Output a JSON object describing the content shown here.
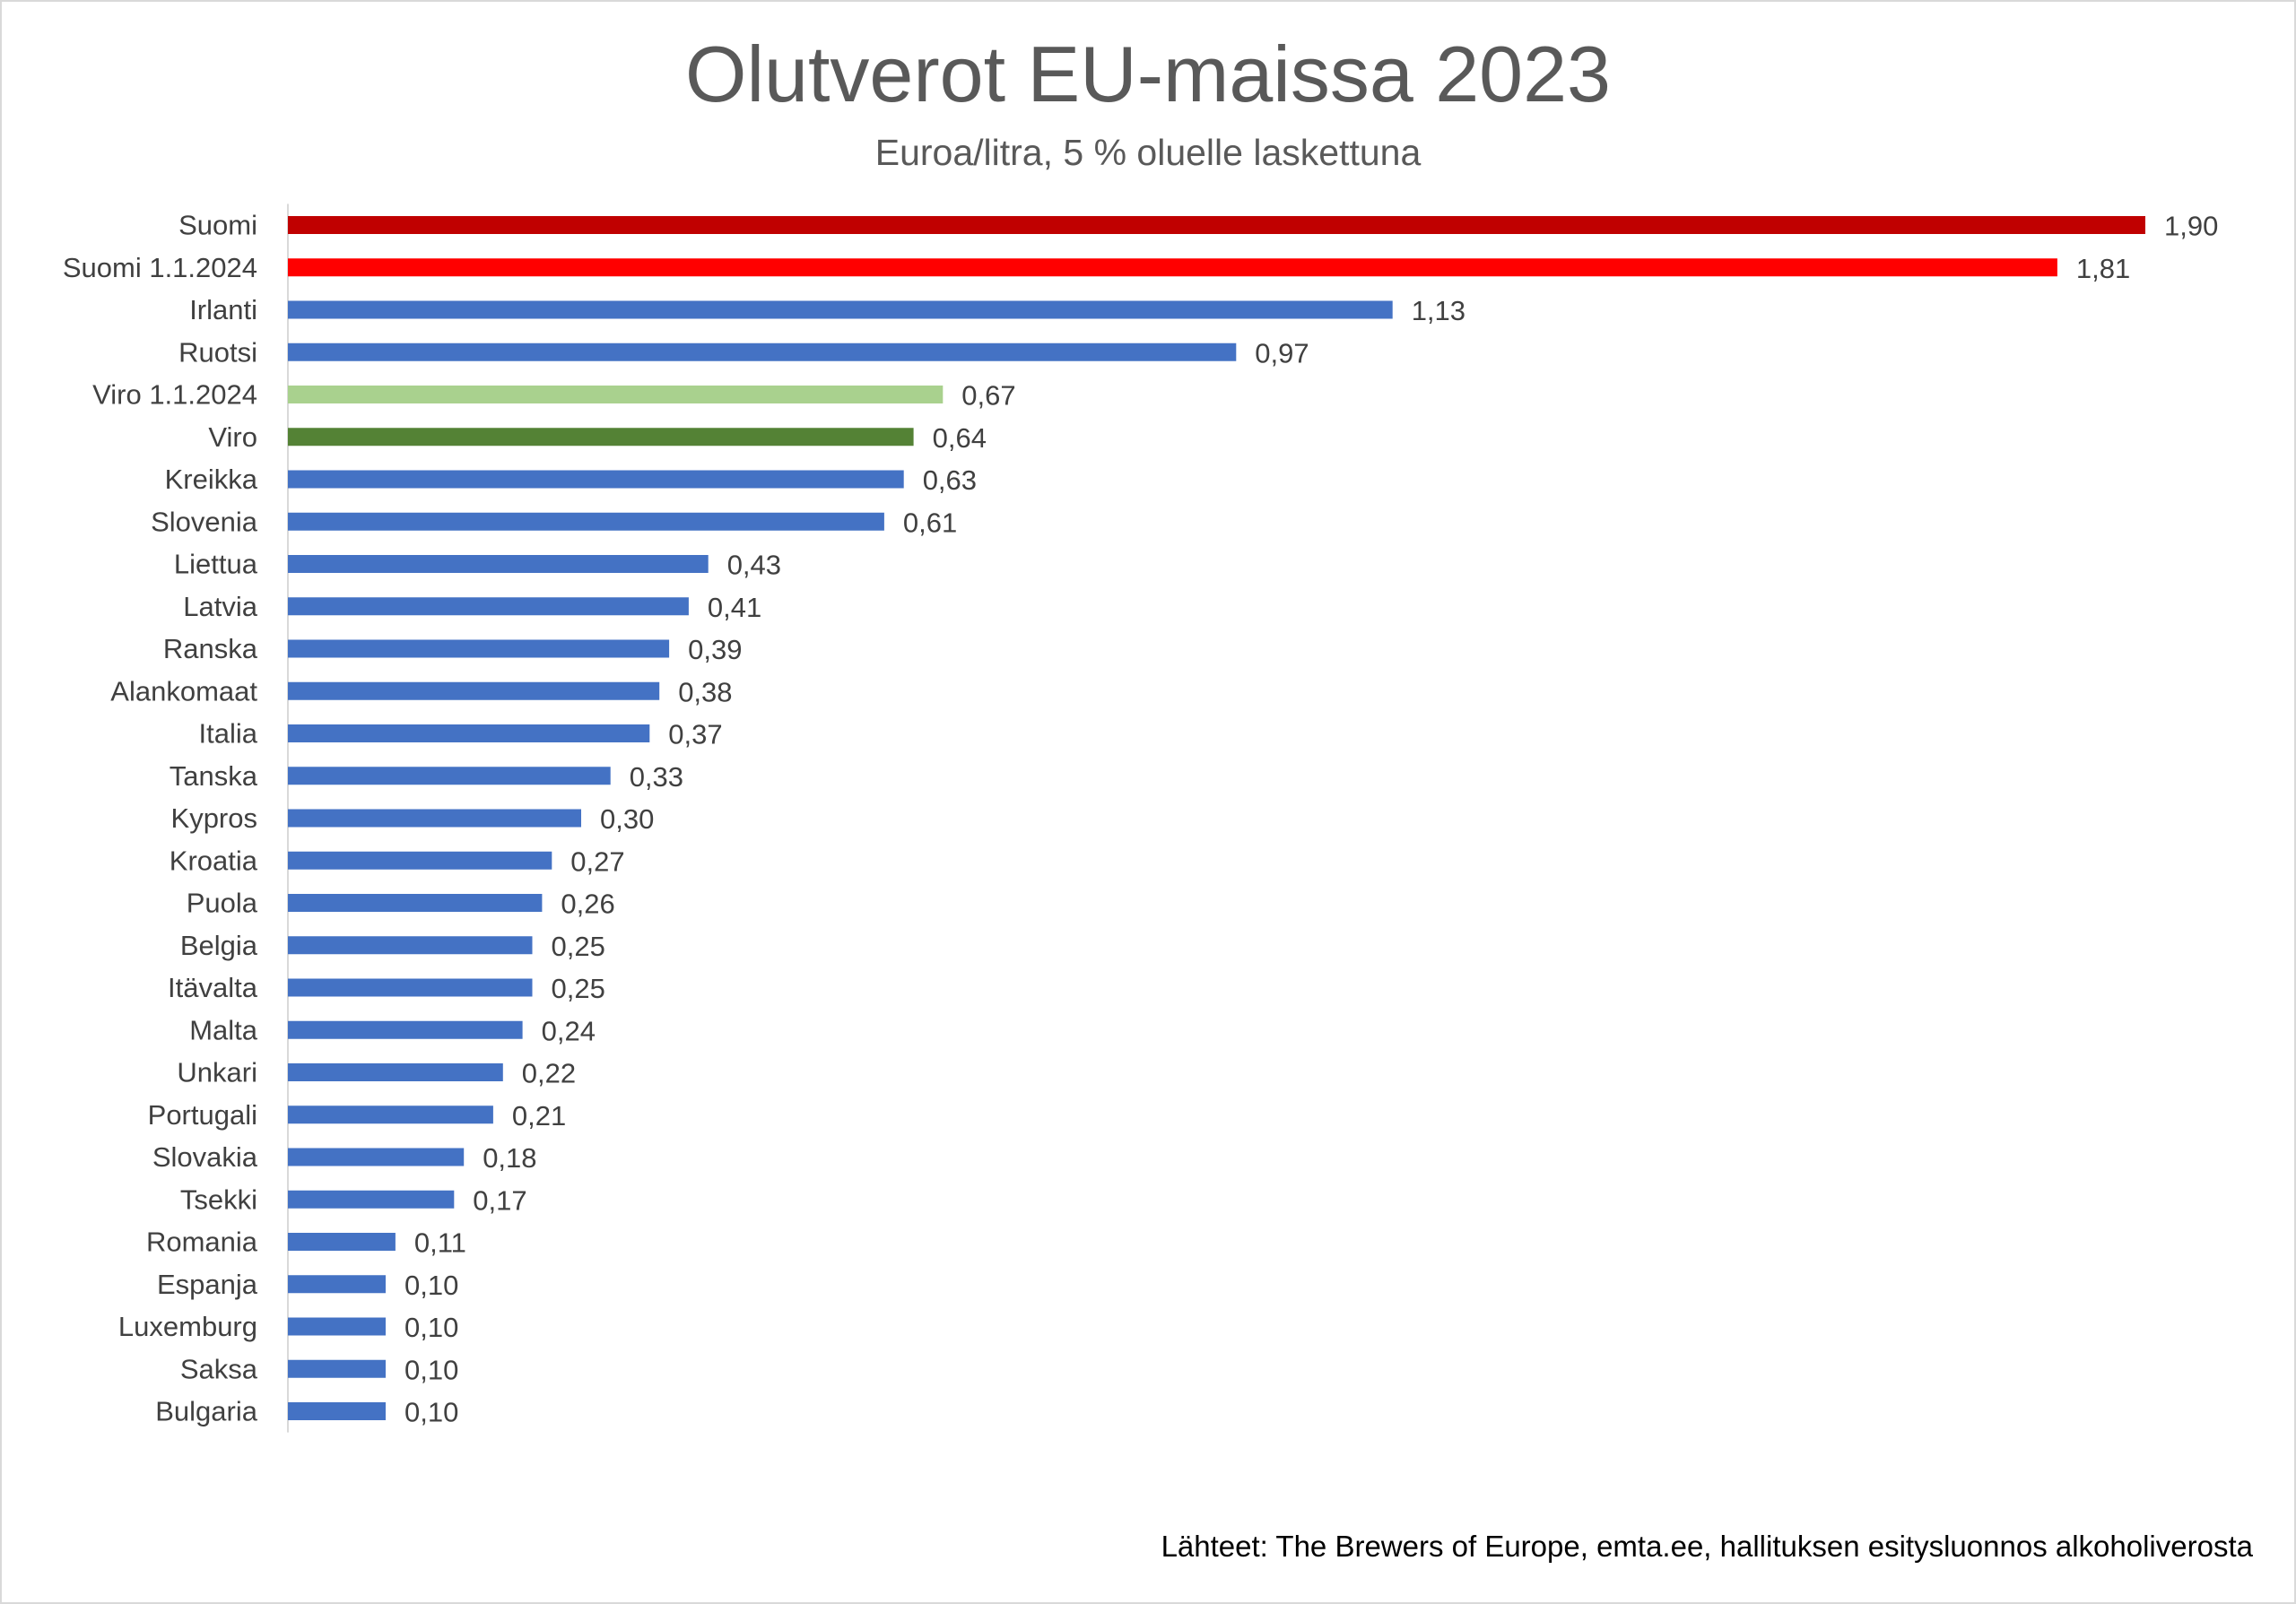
{
  "chart_data": {
    "type": "bar",
    "orientation": "horizontal",
    "title": "Olutverot EU-maissa 2023",
    "subtitle": "Euroa/litra, 5 % oluelle laskettuna",
    "categories": [
      "Suomi",
      "Suomi 1.1.2024",
      "Irlanti",
      "Ruotsi",
      "Viro 1.1.2024",
      "Viro",
      "Kreikka",
      "Slovenia",
      "Liettua",
      "Latvia",
      "Ranska",
      "Alankomaat",
      "Italia",
      "Tanska",
      "Kypros",
      "Kroatia",
      "Puola",
      "Belgia",
      "Itävalta",
      "Malta",
      "Unkari",
      "Portugali",
      "Slovakia",
      "Tsekki",
      "Romania",
      "Espanja",
      "Luxemburg",
      "Saksa",
      "Bulgaria"
    ],
    "values": [
      1.9,
      1.81,
      1.13,
      0.97,
      0.67,
      0.64,
      0.63,
      0.61,
      0.43,
      0.41,
      0.39,
      0.38,
      0.37,
      0.33,
      0.3,
      0.27,
      0.26,
      0.25,
      0.25,
      0.24,
      0.22,
      0.21,
      0.18,
      0.17,
      0.11,
      0.1,
      0.1,
      0.1,
      0.1
    ],
    "value_labels": [
      "1,90",
      "1,81",
      "1,13",
      "0,97",
      "0,67",
      "0,64",
      "0,63",
      "0,61",
      "0,43",
      "0,41",
      "0,39",
      "0,38",
      "0,37",
      "0,33",
      "0,30",
      "0,27",
      "0,26",
      "0,25",
      "0,25",
      "0,24",
      "0,22",
      "0,21",
      "0,18",
      "0,17",
      "0,11",
      "0,10",
      "0,10",
      "0,10",
      "0,10"
    ],
    "colors": [
      "#c00000",
      "#ff0000",
      "#4472c4",
      "#4472c4",
      "#a9d18e",
      "#548235",
      "#4472c4",
      "#4472c4",
      "#4472c4",
      "#4472c4",
      "#4472c4",
      "#4472c4",
      "#4472c4",
      "#4472c4",
      "#4472c4",
      "#4472c4",
      "#4472c4",
      "#4472c4",
      "#4472c4",
      "#4472c4",
      "#4472c4",
      "#4472c4",
      "#4472c4",
      "#4472c4",
      "#4472c4",
      "#4472c4",
      "#4472c4",
      "#4472c4",
      "#4472c4"
    ],
    "xlim": [
      0,
      1.9
    ],
    "grid": false,
    "legend": "none",
    "data_labels": "outside-end"
  },
  "source_note": "Lähteet: The Brewers of Europe, emta.ee, hallituksen esitysluonnos alkoholiverosta"
}
